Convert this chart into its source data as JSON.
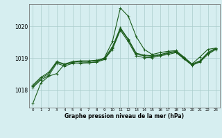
{
  "title": "Graphe pression niveau de la mer (hPa)",
  "bg_color": "#d6eef0",
  "grid_color": "#aacccc",
  "line_color": "#1a5c1a",
  "xlim": [
    -0.5,
    23.5
  ],
  "ylim": [
    1017.45,
    1020.7
  ],
  "yticks": [
    1018,
    1019,
    1020
  ],
  "xticks": [
    0,
    1,
    2,
    3,
    4,
    5,
    6,
    7,
    8,
    9,
    10,
    11,
    12,
    13,
    14,
    15,
    16,
    17,
    18,
    19,
    20,
    21,
    22,
    23
  ],
  "series": [
    [
      1017.58,
      1018.22,
      1018.44,
      1018.52,
      1018.82,
      1018.86,
      1018.84,
      1018.86,
      1018.88,
      1019.02,
      1019.52,
      1020.58,
      1020.32,
      1019.68,
      1019.28,
      1019.12,
      1019.18,
      1019.22,
      1019.24,
      1019.04,
      1018.82,
      1019.04,
      1019.28,
      1019.32
    ],
    [
      1018.08,
      1018.32,
      1018.46,
      1018.84,
      1018.76,
      1018.84,
      1018.86,
      1018.86,
      1018.88,
      1018.96,
      1019.28,
      1019.88,
      1019.52,
      1019.08,
      1019.02,
      1019.02,
      1019.08,
      1019.12,
      1019.18,
      1018.98,
      1018.78,
      1018.88,
      1019.12,
      1019.28
    ],
    [
      1018.12,
      1018.36,
      1018.52,
      1018.88,
      1018.8,
      1018.88,
      1018.9,
      1018.9,
      1018.92,
      1018.98,
      1019.32,
      1019.92,
      1019.58,
      1019.12,
      1019.08,
      1019.06,
      1019.1,
      1019.16,
      1019.2,
      1019.0,
      1018.8,
      1018.9,
      1019.16,
      1019.3
    ],
    [
      1018.16,
      1018.4,
      1018.56,
      1018.9,
      1018.82,
      1018.9,
      1018.92,
      1018.92,
      1018.94,
      1019.0,
      1019.36,
      1019.96,
      1019.6,
      1019.16,
      1019.1,
      1019.08,
      1019.12,
      1019.18,
      1019.22,
      1019.02,
      1018.82,
      1018.92,
      1019.18,
      1019.32
    ]
  ]
}
